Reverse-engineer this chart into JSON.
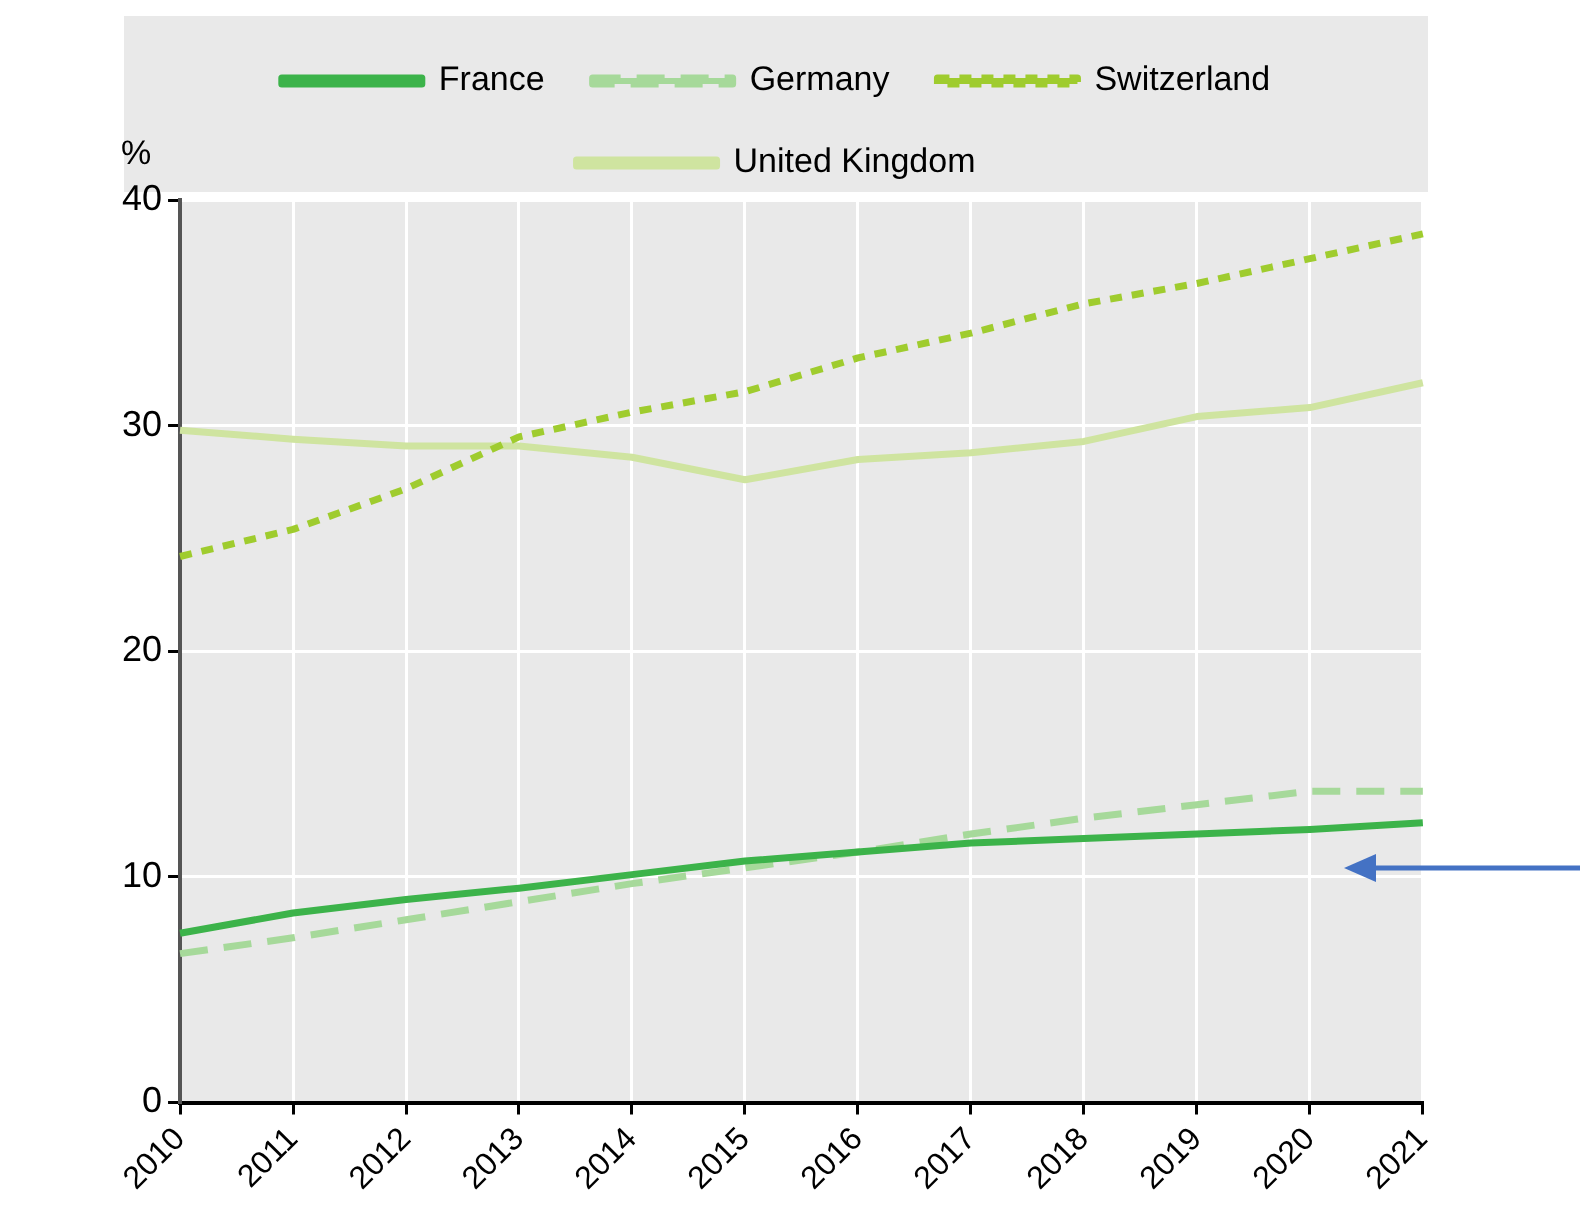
{
  "chart_data": {
    "type": "line",
    "ylabel": "%",
    "categories": [
      "2010",
      "2011",
      "2012",
      "2013",
      "2014",
      "2015",
      "2016",
      "2017",
      "2018",
      "2019",
      "2020",
      "2021"
    ],
    "series": [
      {
        "name": "France",
        "color": "#3cb34a",
        "line_style": "solid",
        "values": [
          7.5,
          8.4,
          9.0,
          9.5,
          10.1,
          10.7,
          11.1,
          11.5,
          11.7,
          11.9,
          12.1,
          12.4
        ]
      },
      {
        "name": "Germany",
        "color": "#a6d99a",
        "line_style": "dashed",
        "values": [
          6.6,
          7.3,
          8.1,
          8.9,
          9.7,
          10.4,
          11.1,
          11.9,
          12.6,
          13.2,
          13.8,
          13.8
        ]
      },
      {
        "name": "Switzerland",
        "color": "#9fcc2e",
        "line_style": "dotted",
        "values": [
          24.2,
          25.4,
          27.2,
          29.5,
          30.6,
          31.5,
          33.0,
          34.1,
          35.4,
          36.3,
          37.4,
          38.5
        ]
      },
      {
        "name": "United Kingdom",
        "color": "#cfe4a0",
        "line_style": "solid",
        "values": [
          29.8,
          29.4,
          29.1,
          29.1,
          28.6,
          27.6,
          28.5,
          28.8,
          29.3,
          30.4,
          30.8,
          31.9
        ]
      }
    ],
    "ylim": [
      0,
      40
    ],
    "yticks": [
      0,
      10,
      20,
      30,
      40
    ],
    "grid": true,
    "legend": "top",
    "marker": "none"
  }
}
